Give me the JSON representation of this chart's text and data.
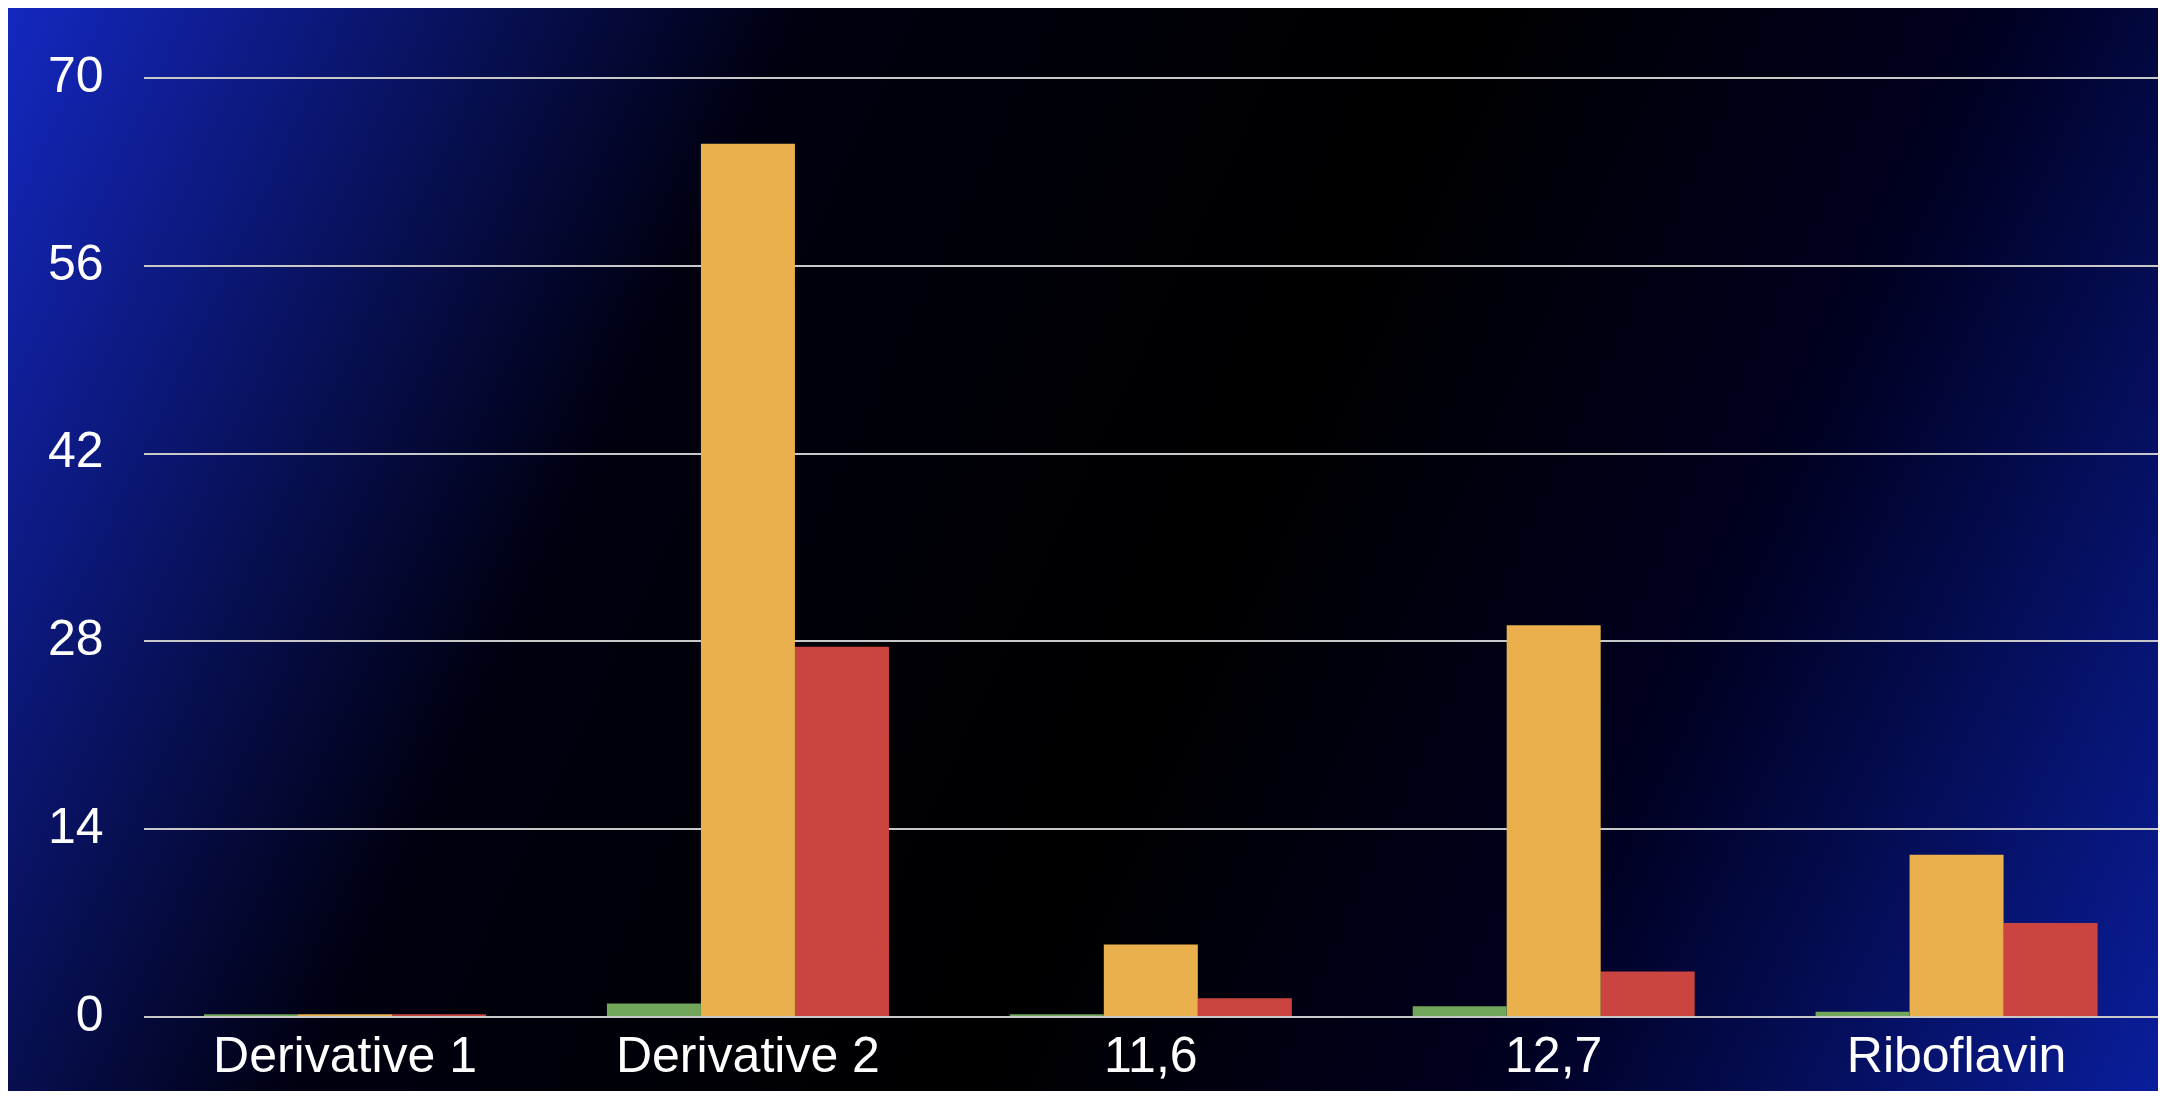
{
  "chart_data": {
    "type": "bar",
    "categories": [
      "Derivative 1",
      "Derivative 2",
      "11,6",
      "12,7",
      "Riboflavin"
    ],
    "series": [
      {
        "color": "#72a65a",
        "values": [
          0.2,
          1.0,
          0.2,
          0.8,
          0.4
        ]
      },
      {
        "color": "#ebb04e",
        "values": [
          0.2,
          65.1,
          5.4,
          29.2,
          12.1
        ]
      },
      {
        "color": "#cc4440",
        "values": [
          0.2,
          27.6,
          1.4,
          3.4,
          7.0
        ]
      }
    ],
    "ylim": [
      0,
      70
    ],
    "yticks": [
      0,
      14,
      28,
      42,
      56,
      70
    ],
    "grid": "y",
    "legend": false
  }
}
